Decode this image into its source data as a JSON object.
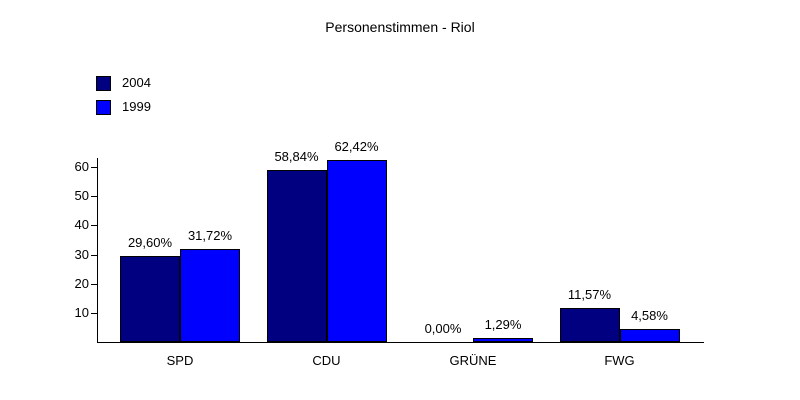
{
  "chart_data": {
    "type": "bar",
    "title": "Personenstimmen - Riol",
    "categories": [
      "SPD",
      "CDU",
      "GRÜNE",
      "FWG"
    ],
    "series": [
      {
        "name": "2004",
        "color": "#000080",
        "values": [
          29.6,
          58.84,
          0.0,
          11.57
        ],
        "display_labels": [
          "29,60%",
          "58,84%",
          "0,00%",
          "11,57%"
        ]
      },
      {
        "name": "1999",
        "color": "#0000ff",
        "values": [
          31.72,
          62.42,
          1.29,
          4.58
        ],
        "display_labels": [
          "31,72%",
          "62,42%",
          "1,29%",
          "4,58%"
        ]
      }
    ],
    "y_ticks": [
      60,
      50,
      40,
      30,
      20,
      10
    ],
    "ylim": [
      0,
      63
    ],
    "value_suffix": "%",
    "legend_position": "top-left",
    "grid": false,
    "background_color": "#ffffff",
    "text_color": "#000000"
  }
}
